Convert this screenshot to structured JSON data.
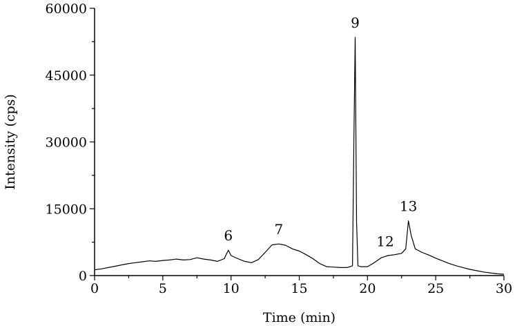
{
  "chart_data": {
    "type": "line",
    "title": "",
    "xlabel": "Time (min)",
    "ylabel": "Intensity (cps)",
    "xlim": [
      0,
      30
    ],
    "ylim": [
      0,
      60000
    ],
    "x_ticks": [
      0,
      5,
      10,
      15,
      20,
      25,
      30
    ],
    "y_ticks": [
      0,
      15000,
      30000,
      45000,
      60000
    ],
    "x_tick_labels": [
      "0",
      "5",
      "10",
      "15",
      "20",
      "25",
      "30"
    ],
    "y_tick_labels": [
      "0",
      "15000",
      "30000",
      "45000",
      "60000"
    ],
    "grid": false,
    "legend": "none",
    "line_color": "#000000",
    "series": [
      {
        "x": [
          0,
          0.5,
          1,
          1.5,
          2,
          2.5,
          3,
          3.5,
          4,
          4.5,
          5,
          5.5,
          6,
          6.5,
          7,
          7.5,
          8,
          8.5,
          9,
          9.5,
          9.8,
          10,
          10.5,
          11,
          11.5,
          12,
          12.5,
          13,
          13.5,
          14,
          14.5,
          15,
          15.5,
          16,
          16.5,
          17,
          17.5,
          18,
          18.5,
          18.9,
          19.0,
          19.1,
          19.2,
          19.3,
          19.5,
          20,
          20.5,
          21,
          21.5,
          22,
          22.5,
          22.8,
          23.0,
          23.2,
          23.5,
          24,
          24.5,
          25,
          25.5,
          26,
          26.5,
          27,
          27.5,
          28,
          28.5,
          29,
          29.5,
          30
        ],
        "y": [
          1300,
          1500,
          1800,
          2100,
          2400,
          2700,
          2900,
          3100,
          3300,
          3200,
          3400,
          3500,
          3700,
          3500,
          3600,
          4000,
          3700,
          3500,
          3200,
          3800,
          5700,
          4500,
          3800,
          3200,
          2900,
          3600,
          5200,
          6900,
          7100,
          6800,
          6000,
          5500,
          4700,
          3800,
          2700,
          2000,
          1900,
          1800,
          1800,
          2200,
          30000,
          53500,
          12000,
          2200,
          2000,
          2000,
          2900,
          4000,
          4500,
          4700,
          5000,
          6000,
          12300,
          9000,
          6000,
          5200,
          4600,
          3900,
          3300,
          2700,
          2200,
          1800,
          1400,
          1100,
          800,
          600,
          400,
          300
        ]
      }
    ],
    "annotations": [
      {
        "text": "6",
        "x": 9.8,
        "y": 5700
      },
      {
        "text": "7",
        "x": 13.5,
        "y": 7100
      },
      {
        "text": "9",
        "x": 19.1,
        "y": 53500
      },
      {
        "text": "12",
        "x": 21.3,
        "y": 4400
      },
      {
        "text": "13",
        "x": 23.0,
        "y": 12300
      }
    ]
  }
}
